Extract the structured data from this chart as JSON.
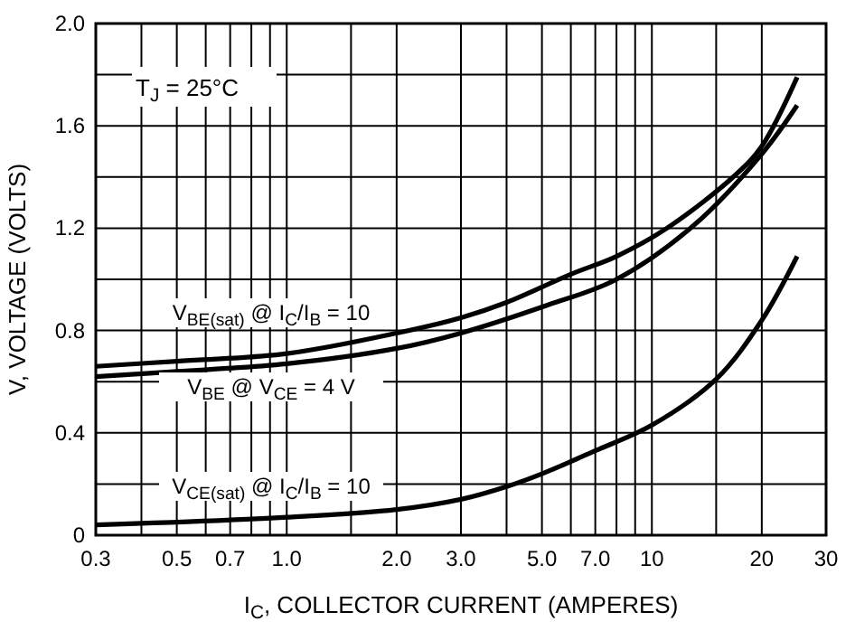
{
  "chart_data": {
    "type": "line",
    "xlabel": "I$_{C}$, COLLECTOR CURRENT (AMPERES)",
    "ylabel": "V, VOLTAGE (VOLTS)",
    "log": "x",
    "xlim": [
      0.3,
      30
    ],
    "ylim": [
      0,
      2
    ],
    "xticks": [
      0.3,
      {
        "value": 0.4,
        "label": null
      },
      0.5,
      {
        "value": 0.6,
        "label": null
      },
      0.7,
      {
        "value": 0.8,
        "label": null
      },
      {
        "value": 0.9,
        "label": null
      },
      {
        "value": 1,
        "label": "1.0"
      },
      {
        "value": 1.5,
        "label": null
      },
      {
        "value": 2,
        "label": "2.0"
      },
      {
        "value": 3,
        "label": "3.0"
      },
      {
        "value": 4,
        "label": null
      },
      {
        "value": 5,
        "label": "5.0"
      },
      {
        "value": 6,
        "label": null
      },
      {
        "value": 7,
        "label": "7.0"
      },
      {
        "value": 8,
        "label": null
      },
      {
        "value": 9,
        "label": null
      },
      10,
      {
        "value": 15,
        "label": null
      },
      20,
      30
    ],
    "yticks": [
      0,
      {
        "value": 0.2,
        "label": null
      },
      0.4,
      {
        "value": 0.6,
        "label": null
      },
      0.8,
      {
        "value": 1,
        "label": null
      },
      1.2,
      {
        "value": 1.4,
        "label": null
      },
      1.6,
      {
        "value": 1.8,
        "label": null
      },
      {
        "value": 2,
        "label": "2.0"
      }
    ],
    "grid": true,
    "marker": "none",
    "line_style": "solid",
    "annotations": [
      "T$_{J}$ = 25°C"
    ],
    "series": [
      {
        "name": "V$_{BE(sat)}$ @ I$_{C}$/I$_{B}$ = 10",
        "color": "#000000",
        "x": [
          0.3,
          0.5,
          1,
          2,
          3,
          4,
          6,
          8,
          11,
          17,
          20,
          25
        ],
        "values": [
          0.66,
          0.68,
          0.71,
          0.79,
          0.85,
          0.91,
          1.02,
          1.09,
          1.2,
          1.41,
          1.52,
          1.79
        ]
      },
      {
        "name": "V$_{BE}$ @ V$_{CE}$ = 4 V",
        "color": "#000000",
        "x": [
          0.3,
          0.5,
          1,
          2,
          3,
          5.2,
          8,
          13,
          20,
          25
        ],
        "values": [
          0.62,
          0.64,
          0.67,
          0.73,
          0.79,
          0.9,
          1.0,
          1.21,
          1.49,
          1.68
        ]
      },
      {
        "name": "V$_{CE(sat)}$ @ I$_{C}$/I$_{B}$ = 10",
        "color": "#000000",
        "x": [
          0.3,
          1,
          2,
          3,
          4,
          5,
          7,
          10,
          15,
          20,
          25
        ],
        "values": [
          0.04,
          0.07,
          0.1,
          0.14,
          0.19,
          0.24,
          0.33,
          0.43,
          0.61,
          0.84,
          1.09
        ]
      }
    ]
  }
}
